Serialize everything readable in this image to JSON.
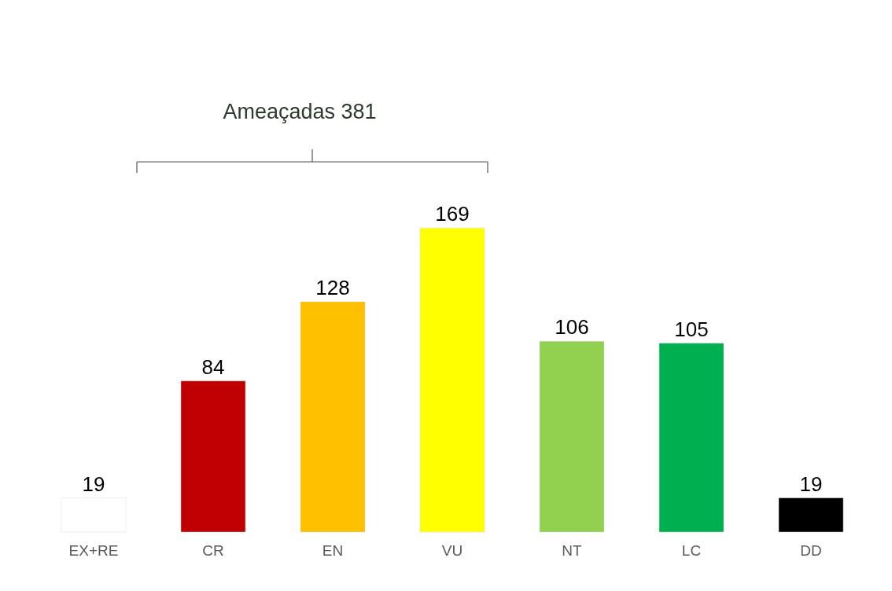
{
  "chart_data": {
    "type": "bar",
    "categories": [
      "EX+RE",
      "CR",
      "EN",
      "VU",
      "NT",
      "LC",
      "DD"
    ],
    "values": [
      19,
      84,
      128,
      169,
      106,
      105,
      19
    ],
    "colors": [
      "#ffffff",
      "#c00000",
      "#ffc000",
      "#ffff00",
      "#92d050",
      "#00b050",
      "#000000"
    ],
    "data_labels": true,
    "grid": false,
    "tick_labels": "x",
    "annotations": [
      "Ameaçadas 381"
    ]
  }
}
